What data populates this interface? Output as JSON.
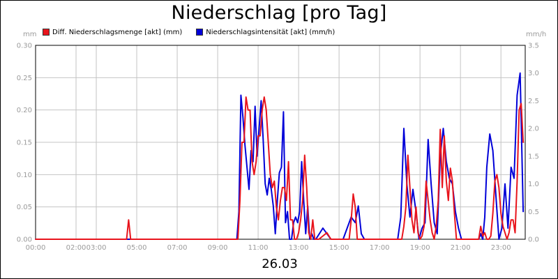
{
  "title": "Niederschlag [pro Tag]",
  "date_label": "26.03",
  "legend": [
    {
      "label": "Diff. Niederschlagsmenge [akt] (mm)",
      "color": "#e8141c"
    },
    {
      "label": "Niederschlagsintensität [akt] (mm/h)",
      "color": "#0000d8"
    }
  ],
  "colors": {
    "grid": "#c4c4c4",
    "axis": "#000000",
    "tick_text": "#9a9a9a"
  },
  "chart_data": {
    "type": "line",
    "title": "Niederschlag [pro Tag]",
    "xlabel": "26.03",
    "x_tick_labels": [
      "00:00",
      "02:00",
      "03:00",
      "05:00",
      "07:00",
      "09:00",
      "11:00",
      "13:00",
      "15:00",
      "17:00",
      "19:00",
      "21:00",
      "23:00"
    ],
    "x_tick_hours": [
      0,
      2,
      3,
      5,
      7,
      9,
      11,
      13,
      15,
      17,
      19,
      21,
      23
    ],
    "xlim_hours": [
      0,
      24.2
    ],
    "y_left": {
      "label": "mm",
      "lim": [
        0,
        0.3
      ],
      "ticks": [
        "0.00",
        "0.05",
        "0.10",
        "0.15",
        "0.20",
        "0.25",
        "0.30"
      ]
    },
    "y_right": {
      "label": "mm/h",
      "lim": [
        0,
        3.5
      ],
      "ticks": [
        "0.0",
        "0.5",
        "1.0",
        "1.5",
        "2.0",
        "2.5",
        "3.0",
        "3.5"
      ]
    },
    "grid": true,
    "legend_position": "top-left",
    "series": [
      {
        "name": "Diff. Niederschlagsmenge [akt] (mm)",
        "axis": "left",
        "color": "#e8141c",
        "x_hours": [
          0,
          4.5,
          4.6,
          4.7,
          10.0,
          10.1,
          10.2,
          10.3,
          10.4,
          10.5,
          10.6,
          10.7,
          10.8,
          10.9,
          11.0,
          11.1,
          11.2,
          11.3,
          11.4,
          11.5,
          11.6,
          11.7,
          11.8,
          11.9,
          12.0,
          12.1,
          12.2,
          12.3,
          12.4,
          12.5,
          12.6,
          12.7,
          12.8,
          12.9,
          13.0,
          13.1,
          13.2,
          13.3,
          13.4,
          13.5,
          13.6,
          13.7,
          13.8,
          14.0,
          14.2,
          14.4,
          14.6,
          15.0,
          15.5,
          15.6,
          15.7,
          15.8,
          15.9,
          16.0,
          16.1,
          18.0,
          18.1,
          18.2,
          18.3,
          18.4,
          18.5,
          18.6,
          18.7,
          18.8,
          18.9,
          19.0,
          19.1,
          19.2,
          19.3,
          19.4,
          19.5,
          19.6,
          19.7,
          19.8,
          19.9,
          20.0,
          20.1,
          20.2,
          20.3,
          20.4,
          20.5,
          20.6,
          20.7,
          20.8,
          20.9,
          21.0,
          21.1,
          21.9,
          22.0,
          22.1,
          22.2,
          22.3,
          22.4,
          22.5,
          22.6,
          22.7,
          22.8,
          22.9,
          23.0,
          23.1,
          23.2,
          23.3,
          23.4,
          23.5,
          23.6,
          23.7,
          23.8,
          23.9,
          24.0,
          24.1
        ],
        "values": [
          0,
          0,
          0.03,
          0,
          0,
          0.06,
          0.15,
          0.15,
          0.22,
          0.2,
          0.2,
          0.12,
          0.1,
          0.12,
          0.16,
          0.16,
          0.2,
          0.22,
          0.2,
          0.15,
          0.1,
          0.08,
          0.09,
          0.05,
          0.03,
          0.06,
          0.08,
          0.08,
          0.06,
          0.12,
          0.03,
          0.03,
          0,
          0,
          0.01,
          0.03,
          0.06,
          0.13,
          0.08,
          0.01,
          0,
          0.03,
          0,
          0,
          0.005,
          0.01,
          0,
          0,
          0,
          0.03,
          0.07,
          0.05,
          0,
          0,
          0,
          0,
          0,
          0.02,
          0.05,
          0.13,
          0.08,
          0.03,
          0.01,
          0.05,
          0.01,
          0,
          0.005,
          0.02,
          0.09,
          0.06,
          0.03,
          0.01,
          0,
          0.02,
          0.06,
          0.17,
          0.08,
          0.16,
          0.09,
          0.06,
          0.11,
          0.09,
          0.04,
          0,
          0,
          0,
          0,
          0,
          0.02,
          0.005,
          0.01,
          0,
          0,
          0.005,
          0.04,
          0.09,
          0.1,
          0.08,
          0.04,
          0.02,
          0.01,
          0,
          0.01,
          0.03,
          0.03,
          0.01,
          0.09,
          0.2,
          0.21,
          0.15
        ]
      },
      {
        "name": "Niederschlagsintensität [akt] (mm/h)",
        "axis": "right",
        "color": "#0000d8",
        "x_hours": [
          0,
          9.95,
          10.05,
          10.15,
          10.25,
          10.35,
          10.45,
          10.55,
          10.65,
          10.75,
          10.85,
          10.95,
          11.05,
          11.15,
          11.25,
          11.35,
          11.45,
          11.55,
          11.65,
          11.75,
          11.85,
          11.95,
          12.05,
          12.15,
          12.25,
          12.35,
          12.45,
          12.55,
          12.65,
          12.75,
          12.85,
          12.95,
          13.05,
          13.15,
          13.25,
          13.35,
          13.45,
          13.55,
          13.65,
          13.75,
          13.85,
          14.2,
          14.4,
          14.6,
          14.8,
          15.2,
          15.6,
          15.8,
          15.95,
          16.1,
          16.25,
          17.9,
          18.05,
          18.2,
          18.35,
          18.5,
          18.65,
          18.8,
          18.95,
          19.1,
          19.25,
          19.4,
          19.55,
          19.7,
          19.85,
          20.0,
          20.15,
          20.3,
          20.45,
          20.6,
          20.75,
          20.9,
          21.05,
          21.2,
          21.5,
          21.9,
          22.0,
          22.1,
          22.2,
          22.3,
          22.45,
          22.6,
          22.75,
          22.9,
          23.05,
          23.2,
          23.35,
          23.5,
          23.65,
          23.8,
          23.95,
          24.1
        ],
        "values": [
          0,
          0,
          0.5,
          2.6,
          2.2,
          1.7,
          1.3,
          0.9,
          1.6,
          1.4,
          2.4,
          1.5,
          2.0,
          2.5,
          1.8,
          1.0,
          0.8,
          1.1,
          0.9,
          0.6,
          0.1,
          0.7,
          1.2,
          1.3,
          2.3,
          0.3,
          0.5,
          0,
          0,
          0.3,
          0.4,
          0.3,
          0.5,
          1.4,
          0.7,
          0.1,
          0.6,
          0,
          0.1,
          0,
          0,
          0.2,
          0.1,
          0,
          0,
          0,
          0.4,
          0.3,
          0.6,
          0.1,
          0,
          0,
          0.4,
          2.0,
          1.0,
          0.4,
          0.9,
          0.5,
          0,
          0.2,
          0.3,
          1.8,
          1.0,
          0.3,
          0.1,
          1.5,
          2.0,
          1.4,
          1.1,
          1.0,
          0.5,
          0.2,
          0,
          0,
          0,
          0,
          0.1,
          0,
          0.4,
          1.3,
          1.9,
          1.6,
          0.8,
          0,
          0.2,
          1.0,
          0.2,
          1.3,
          1.1,
          2.6,
          3.0,
          0.5
        ]
      }
    ]
  }
}
